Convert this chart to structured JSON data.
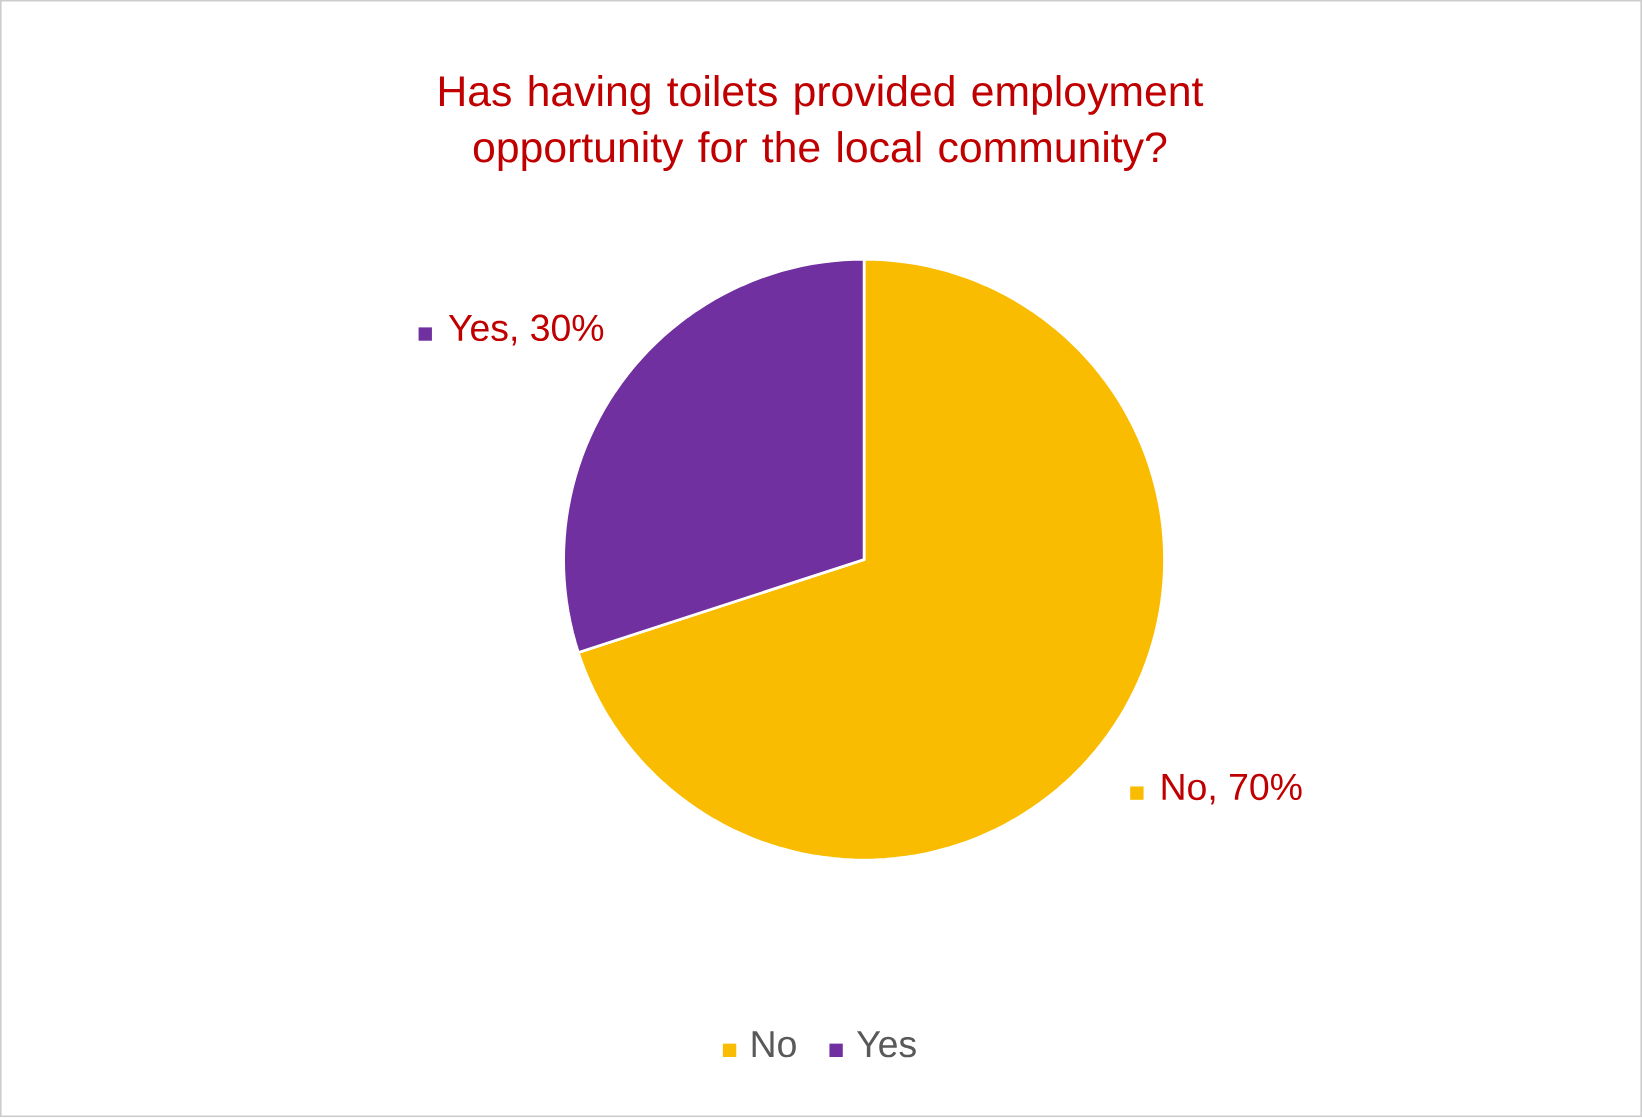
{
  "chart_data": {
    "type": "pie",
    "title": "Has having toilets provided employment opportunity for the local community?",
    "categories": [
      "No",
      "Yes"
    ],
    "values": [
      70,
      30
    ],
    "colors": [
      "#f9bc00",
      "#7030a0"
    ],
    "value_labels": [
      "No, 70%",
      "Yes, 30%"
    ],
    "legend": "bottom"
  }
}
